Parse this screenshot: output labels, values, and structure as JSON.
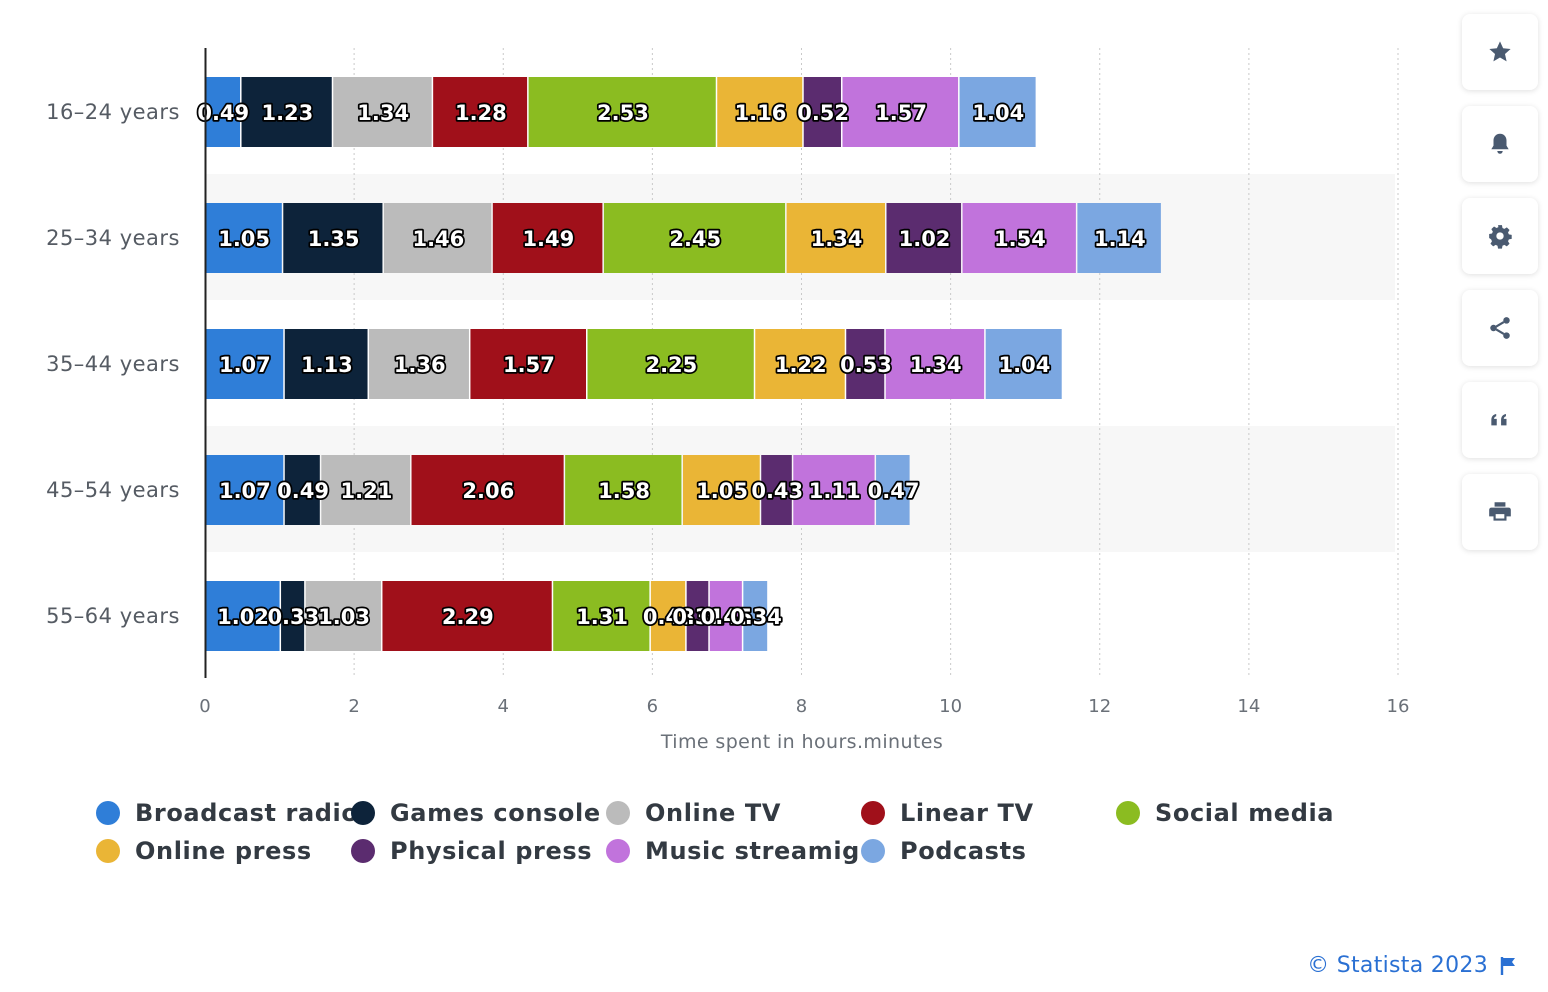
{
  "chart_data": {
    "type": "bar",
    "orientation": "horizontal",
    "stacked": true,
    "categories": [
      "16-24 years",
      "25-34 years",
      "35-44 years",
      "45-54 years",
      "55-64 years"
    ],
    "series": [
      {
        "name": "Broadcast radio",
        "color": "#2f7ed8",
        "values": [
          0.49,
          1.05,
          1.07,
          1.07,
          1.02
        ],
        "labels": [
          "0.49",
          "1.05",
          "1.07",
          "1.07",
          "1.02"
        ]
      },
      {
        "name": "Games console",
        "color": "#0d233a",
        "values": [
          1.23,
          1.35,
          1.13,
          0.49,
          0.33
        ],
        "labels": [
          "1.23",
          "1.35",
          "1.13",
          "0.49",
          "0.33"
        ]
      },
      {
        "name": "Online TV",
        "color": "#bbbbbb",
        "values": [
          1.34,
          1.46,
          1.36,
          1.21,
          1.03
        ],
        "labels": [
          "1.34",
          "1.46",
          "1.36",
          "1.21",
          "1.03"
        ]
      },
      {
        "name": "Linear TV",
        "color": "#a0101a",
        "values": [
          1.28,
          1.49,
          1.57,
          2.06,
          2.29
        ],
        "labels": [
          "1.28",
          "1.49",
          "1.57",
          "2.06",
          "2.29"
        ]
      },
      {
        "name": "Social media",
        "color": "#8bbc21",
        "values": [
          2.53,
          2.45,
          2.25,
          1.58,
          1.31
        ],
        "labels": [
          "2.53",
          "2.45",
          "2.25",
          "1.58",
          "1.31"
        ]
      },
      {
        "name": "Online press",
        "color": "#eab536",
        "values": [
          1.16,
          1.34,
          1.22,
          1.05,
          0.48
        ],
        "labels": [
          "1.16",
          "1.34",
          "1.22",
          "1.05",
          "0.48"
        ]
      },
      {
        "name": "Physical press",
        "color": "#5b2c6f",
        "values": [
          0.52,
          1.02,
          0.53,
          0.43,
          0.31
        ],
        "labels": [
          "0.52",
          "1.02",
          "0.53",
          "0.43",
          "0.31"
        ]
      },
      {
        "name": "Music streamig",
        "color": "#c173dc",
        "values": [
          1.57,
          1.54,
          1.34,
          1.11,
          0.45
        ],
        "labels": [
          "1.57",
          "1.54",
          "1.34",
          "1.11",
          "0.45"
        ]
      },
      {
        "name": "Podcasts",
        "color": "#7ba7e1",
        "values": [
          1.04,
          1.14,
          1.04,
          0.47,
          0.34
        ],
        "labels": [
          "1.04",
          "1.14",
          "1.04",
          "0.47",
          "0.34"
        ]
      }
    ],
    "xlabel": "Time spent in hours.minutes",
    "xlim": [
      0,
      16
    ],
    "xticks": [
      0,
      2,
      4,
      6,
      8,
      10,
      12,
      14,
      16
    ],
    "grid": "vertical dotted",
    "legend_position": "bottom"
  },
  "toolbar": {
    "buttons": [
      {
        "name": "favorite-button",
        "icon": "star-icon"
      },
      {
        "name": "notification-button",
        "icon": "bell-icon"
      },
      {
        "name": "settings-button",
        "icon": "gear-icon"
      },
      {
        "name": "share-button",
        "icon": "share-icon"
      },
      {
        "name": "cite-button",
        "icon": "quote-icon"
      },
      {
        "name": "print-button",
        "icon": "printer-icon"
      }
    ],
    "icon_color": "#4a5a70"
  },
  "credit": {
    "text": "© Statista 2023",
    "color": "#2a70d3"
  }
}
